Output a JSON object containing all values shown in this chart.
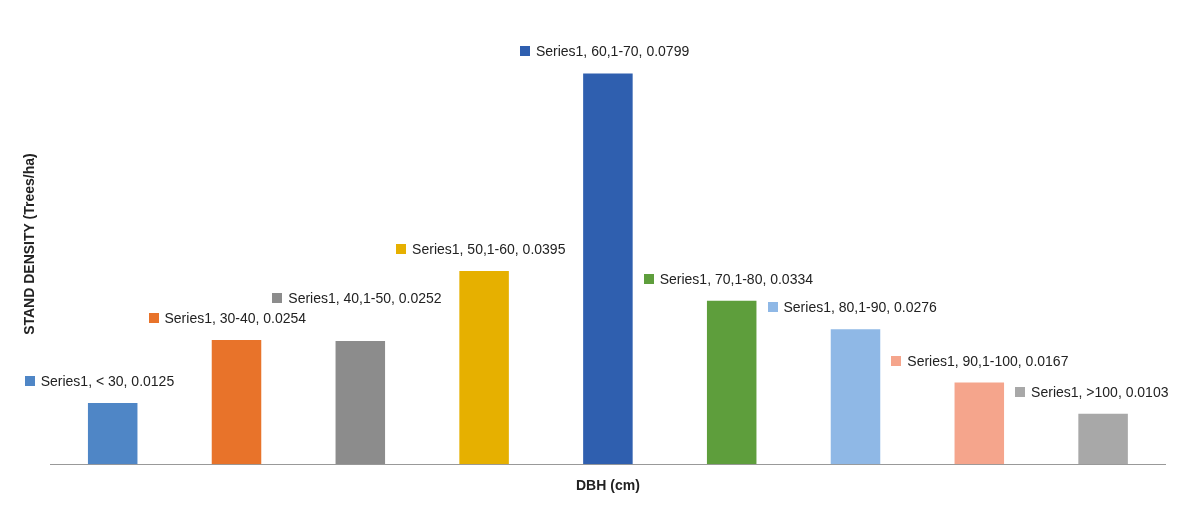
{
  "chart_data": {
    "type": "bar",
    "xlabel": "DBH (cm)",
    "ylabel": "STAND DENSITY (Trees/ha)",
    "tick_labels": false,
    "categories": [
      null,
      null,
      null,
      null,
      null,
      null,
      null,
      null,
      null
    ],
    "values": [
      0.0125,
      0.0254,
      0.0252,
      0.0395,
      0.0799,
      0.0334,
      0.0276,
      0.0167,
      0.0103
    ],
    "colors": [
      "#4f86c6",
      "#e8732a",
      "#8c8c8c",
      "#e6b000",
      "#2f5faf",
      "#5e9e3c",
      "#8fb8e6",
      "#f5a58c",
      "#a8a8a8"
    ],
    "value_labels": [
      "Series1, < 30, 0.0125",
      "Series1, 30-40, 0.0254",
      "Series1, 40,1-50, 0.0252",
      "Series1, 50,1-60, 0.0395",
      "Series1, 60,1-70, 0.0799",
      "Series1, 70,1-80, 0.0334",
      "Series1, 80,1-90, 0.0276",
      "Series1, 90,1-100, 0.0167",
      "Series1, >100, 0.0103"
    ]
  }
}
